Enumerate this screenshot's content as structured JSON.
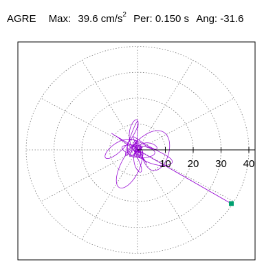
{
  "header": {
    "station": "AGRE",
    "max_label": "Max:",
    "max_value": "39.6",
    "max_unit": "cm/s",
    "max_unit_exp": "2",
    "per_label": "Per:",
    "per_value": "0.150 s",
    "ang_label": "Ang:",
    "ang_value": "-31.6"
  },
  "chart_data": {
    "type": "line",
    "title": "",
    "polar": true,
    "radial_ticks": [
      10,
      20,
      30,
      40
    ],
    "radial_tick_labels": [
      "10",
      "20",
      "30",
      "40"
    ],
    "r_max": 40,
    "angular_grid_step_deg": 30,
    "grid": true,
    "trace_color": "#9400d3",
    "marker_color": "#00a070",
    "end_point": {
      "x": 33.7,
      "y": -20.8
    },
    "peak": {
      "amplitude": 39.6,
      "angle_deg": -31.6
    }
  }
}
